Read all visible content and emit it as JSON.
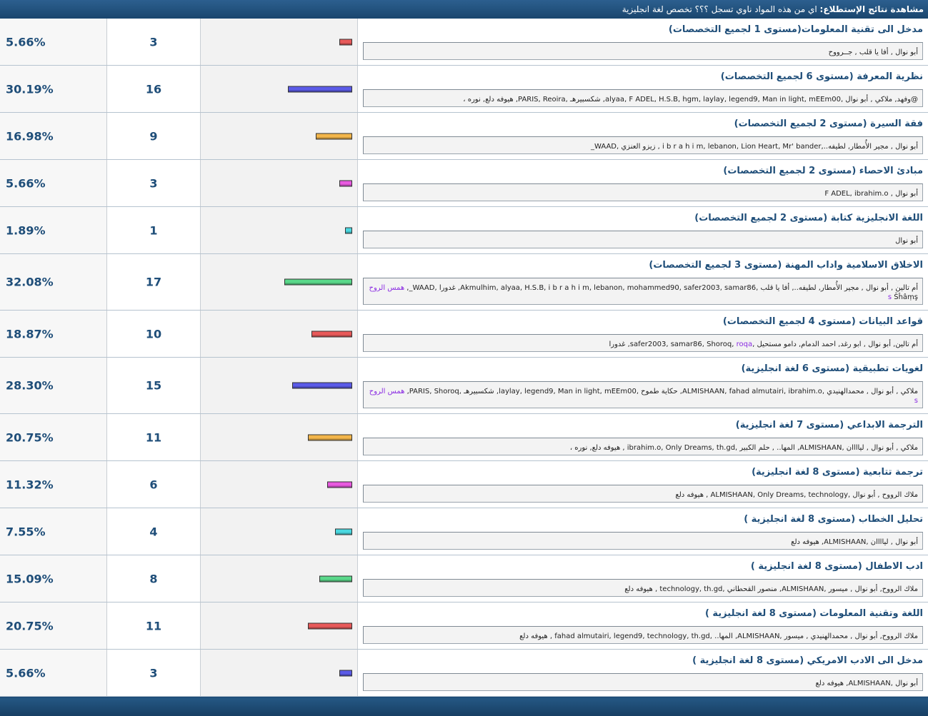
{
  "header": {
    "label": "مشاهدة نتائج الإستطلاع:",
    "question": "اي من هذه المواد ناوي تسجل ؟؟؟ تخصص لغة انجليزية"
  },
  "options": [
    {
      "title": "مدخل الى تقنية المعلومات(مستوى 1 لجميع التخصصات)",
      "voters": "أبو نوال , أفا يا قلب , جــرووح",
      "votes": "3",
      "percent": "5.66%",
      "fraction": 0.0566,
      "bar_color": "#e85a5a"
    },
    {
      "title": "نظرية المعرفة (مستوى 6 لجميع التخصصات)",
      "voters": "@وفهد, ملاكي , أبو نوال ,alyaa, F ADEL, H.S.B, hgm, laylay, legend9, Man in light, mEEm00, شكسبيرهـ ,PARIS, Reoira, هيوفه دلع, نوره ،",
      "votes": "16",
      "percent": "30.19%",
      "fraction": 0.3019,
      "bar_color": "#5b5be8"
    },
    {
      "title": "فقة السيرة (مستوى 2 لجميع التخصصات)",
      "voters": "أبو نوال , مجير الأُمطار, لطيفه..,i b r a h i m, lebanon, Lion Heart, Mr' bander , زيزو العنزي ,WAAD_",
      "votes": "9",
      "percent": "16.98%",
      "fraction": 0.1698,
      "bar_color": "#f2b54a"
    },
    {
      "title": "مبادئ الاحصاء (مستوى 2 لجميع التخصصات)",
      "voters": "أبو نوال , F ADEL, ibrahim.o",
      "votes": "3",
      "percent": "5.66%",
      "fraction": 0.0566,
      "bar_color": "#e85ae0"
    },
    {
      "title": "اللغة الانجليزية كتابة (مستوى 2 لجميع التخصصات)",
      "voters": "أبو نوال",
      "votes": "1",
      "percent": "1.89%",
      "fraction": 0.0189,
      "bar_color": "#4ad8e0"
    },
    {
      "title": "الاخلاق الاسلامية واداب المهنة (مستوى 3 لجميع التخصصات)",
      "voters": "أم تالين , أبو نوال , مجير الأُمطار, لطيفه.., أفا يا قلب ,Akmulhim, alyaa, H.S.B, i b r a h i m, lebanon, mohammed90, safer2003, samar86, غدورا ,WAAD_,",
      "voters_hl": "همس الروح s",
      "voters_extra": "Šĥâṃş",
      "votes": "17",
      "percent": "32.08%",
      "fraction": 0.3208,
      "bar_color": "#5ad88a"
    },
    {
      "title": "قواعد البيانات (مستوى 4 لجميع التخصصات)",
      "voters": "أم تالين, أبو نوال , ابو رغد, احمد الدمام, دامو مستحيل ,safer2003, samar86, Shoroq,",
      "voters_hl": "roqa",
      "voters_tail": ", غدورا",
      "votes": "10",
      "percent": "18.87%",
      "fraction": 0.1887,
      "bar_color": "#e85a5a"
    },
    {
      "title": "لغويات تطبيقية (مستوى 6 لغة انجليزية)",
      "voters": "ملاكي , أبو نوال , محمدالهنيدي ,ALMISHAAN, fahad almutairi, ibrahim.o, حكاية طموح ,laylay, legend9, Man in light, mEEm00, شكسبيرهـ ,PARIS, Shoroq,",
      "voters_hl": "همس الروح s",
      "votes": "15",
      "percent": "28.30%",
      "fraction": 0.283,
      "bar_color": "#5b5be8"
    },
    {
      "title": "الترجمة الابداعي (مستوى 7 لغة انجليزية)",
      "voters": "ملاكي , أبو نوال , لياااان ,ALMISHAAN, المها.. , حلم الكبير ,ibrahim.o, Only Dreams, th.gd , هيوفه دلع, نوره ،",
      "votes": "11",
      "percent": "20.75%",
      "fraction": 0.2075,
      "bar_color": "#f2b54a"
    },
    {
      "title": "ترجمة تتابعية (مستوى 8 لغة انجليزية)",
      "voters": "ملاك الرووح , أبو نوال ,ALMISHAAN, Only Dreams, technology , هيوفه دلع",
      "votes": "6",
      "percent": "11.32%",
      "fraction": 0.1132,
      "bar_color": "#e85ae0"
    },
    {
      "title": "تحليل الخطاب (مستوى 8 لغة انجليزية )",
      "voters": "أبو نوال , لياااان ,ALMISHAAN, هيوفه دلع",
      "votes": "4",
      "percent": "7.55%",
      "fraction": 0.0755,
      "bar_color": "#4ad8e0"
    },
    {
      "title": "ادب الاطفال (مستوى 8 لغة انجليزية )",
      "voters": "ملاك الرووح, أبو نوال , ميسور ,ALMISHAAN, منصور القحطاني ,technology, th.gd , هيوفه دلع",
      "votes": "8",
      "percent": "15.09%",
      "fraction": 0.1509,
      "bar_color": "#5ad88a"
    },
    {
      "title": "اللغة وتقنية المعلومات (مستوى 8 لغة انجليزية )",
      "voters": "ملاك الرووح, أبو نوال , محمدالهنيدي , ميسور ,ALMISHAAN, المها.. ,fahad almutairi, legend9, technology, th.gd , هيوفه دلع",
      "votes": "11",
      "percent": "20.75%",
      "fraction": 0.2075,
      "bar_color": "#e85a5a"
    },
    {
      "title": "مدخل الى الادب الامريكي (مستوى 8 لغة انجليزية )",
      "voters": "أبو نوال ,ALMISHAAN, هيوفه دلع",
      "votes": "3",
      "percent": "5.66%",
      "fraction": 0.0566,
      "bar_color": "#5b5be8"
    }
  ]
}
